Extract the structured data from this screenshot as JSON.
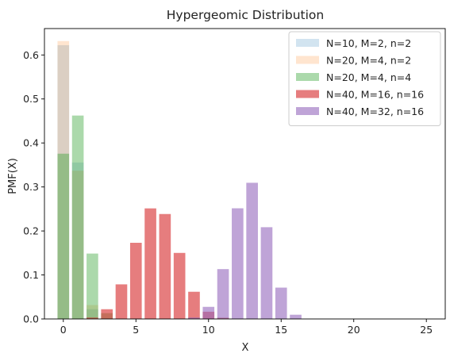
{
  "chart_data": {
    "type": "bar",
    "title": "Hypergeomic Distribution",
    "xlabel": "X",
    "ylabel": "PMF(X)",
    "xlim": [
      -1.3,
      26.3
    ],
    "ylim": [
      0,
      0.66
    ],
    "xticks": [
      0,
      5,
      10,
      15,
      20,
      25
    ],
    "yticks": [
      0.0,
      0.1,
      0.2,
      0.3,
      0.4,
      0.5,
      0.6
    ],
    "bar_width": 0.8,
    "grid": false,
    "legend_position": "top-right",
    "series": [
      {
        "name": "N=10, M=2, n=2",
        "color": "#1f77b4",
        "alpha": 0.2,
        "x": [
          0,
          1,
          2
        ],
        "values": [
          0.6222,
          0.3556,
          0.0222
        ]
      },
      {
        "name": "N=20, M=4, n=2",
        "color": "#ff7f0e",
        "alpha": 0.2,
        "x": [
          0,
          1,
          2
        ],
        "values": [
          0.6316,
          0.3368,
          0.0316
        ]
      },
      {
        "name": "N=20, M=4, n=4",
        "color": "#2ca02c",
        "alpha": 0.4,
        "x": [
          0,
          1,
          2,
          3,
          4
        ],
        "values": [
          0.3756,
          0.4623,
          0.1486,
          0.0132,
          0.0002
        ]
      },
      {
        "name": "N=40, M=16, n=16",
        "color": "#d62728",
        "alpha": 0.6,
        "x": [
          1,
          2,
          3,
          4,
          5,
          6,
          7,
          8,
          9,
          10,
          11,
          12
        ],
        "values": [
          0.0003,
          0.0031,
          0.0221,
          0.0786,
          0.1731,
          0.2513,
          0.2385,
          0.1501,
          0.0618,
          0.0164,
          0.0027,
          0.0003
        ]
      },
      {
        "name": "N=40, M=32, n=16",
        "color": "#9467bd",
        "alpha": 0.6,
        "x": [
          8,
          9,
          10,
          11,
          12,
          13,
          14,
          15,
          16
        ],
        "values": [
          0.0002,
          0.0033,
          0.0275,
          0.1133,
          0.2515,
          0.3095,
          0.2085,
          0.0712,
          0.0096
        ]
      }
    ]
  }
}
